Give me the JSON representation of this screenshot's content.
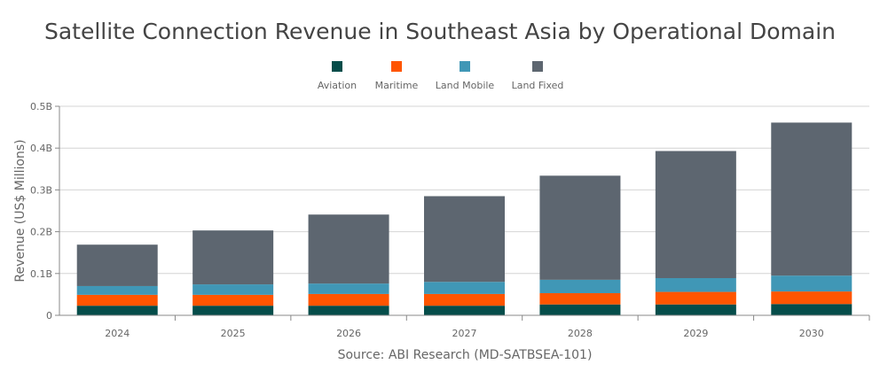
{
  "chart_data": {
    "type": "bar",
    "stacked": true,
    "title": "Satellite Connection Revenue in Southeast Asia by Operational Domain",
    "ylabel": "Revenue (US$ Millions)",
    "xlabel": "",
    "source": "Source: ABI Research (MD-SATBSEA-101)",
    "categories": [
      "2024",
      "2025",
      "2026",
      "2027",
      "2028",
      "2029",
      "2030"
    ],
    "ylim": [
      0,
      0.5
    ],
    "yticks": [
      0,
      0.1,
      0.2,
      0.3,
      0.4,
      0.5
    ],
    "ytick_labels": [
      "0",
      "0.1B",
      "0.2B",
      "0.3B",
      "0.4B",
      "0.5B"
    ],
    "grid": true,
    "legend_position": "top",
    "series": [
      {
        "name": "Aviation",
        "color": "#054d4a",
        "values": [
          0.023,
          0.023,
          0.023,
          0.023,
          0.026,
          0.026,
          0.027
        ]
      },
      {
        "name": "Maritime",
        "color": "#ff5500",
        "values": [
          0.026,
          0.026,
          0.028,
          0.028,
          0.027,
          0.03,
          0.03
        ]
      },
      {
        "name": "Land Mobile",
        "color": "#4097b6",
        "values": [
          0.021,
          0.025,
          0.025,
          0.029,
          0.032,
          0.033,
          0.038
        ]
      },
      {
        "name": "Land Fixed",
        "color": "#5d6670",
        "values": [
          0.099,
          0.129,
          0.165,
          0.205,
          0.249,
          0.304,
          0.366
        ]
      }
    ]
  }
}
